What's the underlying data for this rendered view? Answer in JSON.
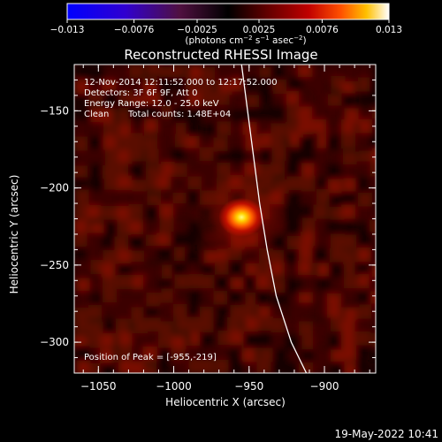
{
  "colorbar": {
    "ticks": [
      {
        "value": -0.013,
        "label": "−0.013"
      },
      {
        "value": -0.0076,
        "label": "−0.0076"
      },
      {
        "value": -0.0025,
        "label": "−0.0025"
      },
      {
        "value": 0.0025,
        "label": "0.0025"
      },
      {
        "value": 0.0076,
        "label": "0.0076"
      },
      {
        "value": 0.013,
        "label": "0.013"
      }
    ],
    "range": [
      -0.013,
      0.013
    ],
    "units_main": "(photons cm",
    "units_exp1": "−2",
    "units_mid": " s",
    "units_exp2": "−1",
    "units_end": " asec",
    "units_exp3": "−2",
    "units_close": ")"
  },
  "title": "Reconstructed RHESSI Image",
  "info": {
    "time": "12-Nov-2014 12:11:52.000 to 12:17:52.000",
    "detectors": "Detectors: 3F 6F 9F, Att 0",
    "energy": "Energy Range: 12.0 - 25.0 keV",
    "clean_label": "Clean",
    "counts": "Total counts: 1.48E+04"
  },
  "peak_text": "Position of Peak = [-955,-219]",
  "axes": {
    "xlabel": "Heliocentric X (arcsec)",
    "ylabel": "Heliocentric Y (arcsec)",
    "xlim": [
      -1066,
      -866
    ],
    "ylim": [
      -320,
      -120
    ],
    "xticks": [
      {
        "value": -1050,
        "label": "−1050"
      },
      {
        "value": -1000,
        "label": "−1000"
      },
      {
        "value": -950,
        "label": "−950"
      },
      {
        "value": -900,
        "label": "−900"
      }
    ],
    "yticks": [
      {
        "value": -150,
        "label": "−150"
      },
      {
        "value": -200,
        "label": "−200"
      },
      {
        "value": -250,
        "label": "−250"
      },
      {
        "value": -300,
        "label": "−300"
      }
    ],
    "x_minor_step": 10,
    "y_minor_step": 10
  },
  "peak": {
    "x": -955,
    "y": -219
  },
  "limb_points": [
    [
      -912,
      -320
    ],
    [
      -922,
      -300
    ],
    [
      -932,
      -270
    ],
    [
      -938,
      -240
    ],
    [
      -943,
      -210
    ],
    [
      -947,
      -180
    ],
    [
      -951,
      -150
    ],
    [
      -955,
      -120
    ]
  ],
  "timestamp": "19-May-2022 10:41",
  "colors": {
    "background": "#000000",
    "limb": "#ffffff",
    "text": "#ffffff"
  }
}
